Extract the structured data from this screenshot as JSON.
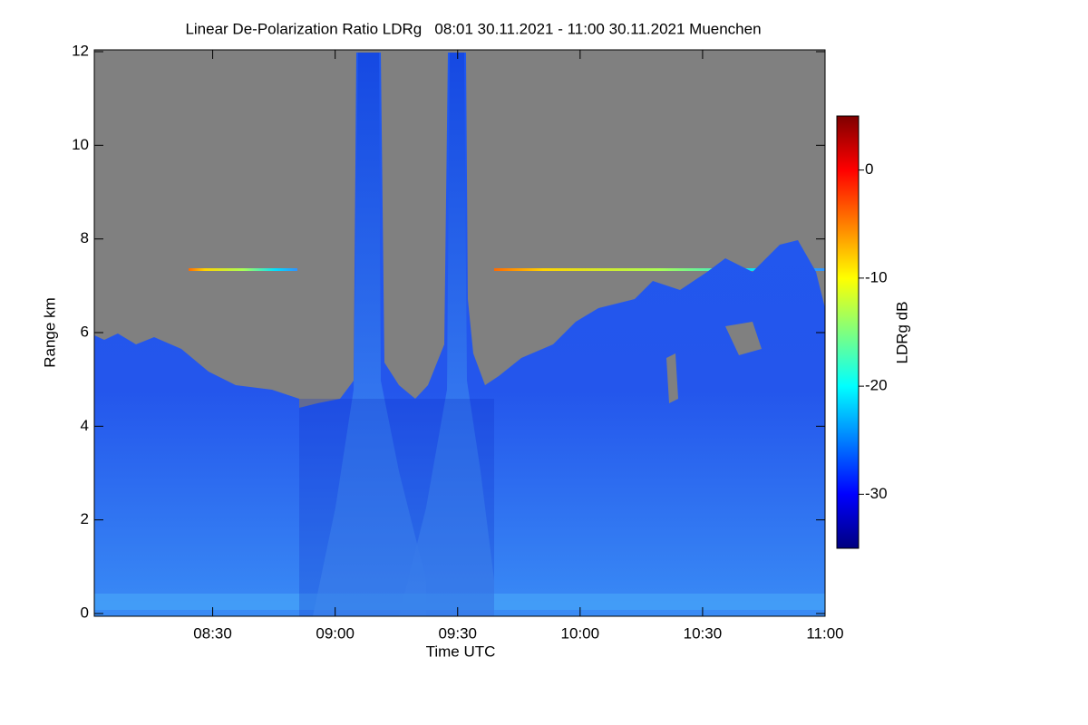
{
  "chart_data": {
    "type": "heatmap",
    "title": "Linear De-Polarization Ratio LDRg   08:01 30.11.2021 - 11:00 30.11.2021 Muenchen",
    "x_label": "Time UTC",
    "y_label": "Range km",
    "xlim": [
      481,
      660
    ],
    "xticks": [
      {
        "value": 510,
        "label": "08:30"
      },
      {
        "value": 540,
        "label": "09:00"
      },
      {
        "value": 570,
        "label": "09:30"
      },
      {
        "value": 600,
        "label": "10:00"
      },
      {
        "value": 630,
        "label": "10:30"
      },
      {
        "value": 660,
        "label": "11:00"
      }
    ],
    "ylim": [
      0,
      12
    ],
    "yticks": [
      0,
      2,
      4,
      6,
      8,
      10,
      12
    ],
    "colorbar": {
      "label": "LDRg dB",
      "lim": [
        -35,
        5
      ],
      "ticks": [
        0,
        -10,
        -20,
        -30
      ],
      "colormap": "jet"
    }
  }
}
